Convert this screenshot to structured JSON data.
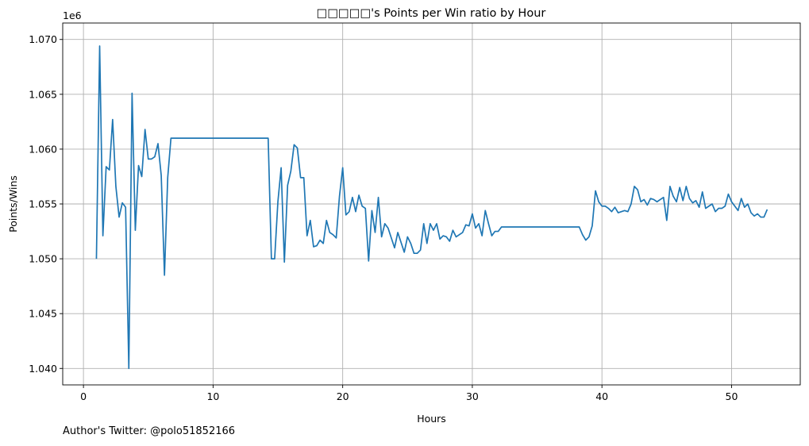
{
  "chart_data": {
    "type": "line",
    "title": "□□□□□'s Points per Win ratio by Hour",
    "xlabel": "Hours",
    "ylabel": "Points/Wins",
    "y_offset_label": "1e6",
    "xlim": [
      -1.6,
      55.3
    ],
    "ylim": [
      1.0385,
      1.0715
    ],
    "x_ticks": [
      0,
      10,
      20,
      30,
      40,
      50
    ],
    "x_tick_labels": [
      "0",
      "10",
      "20",
      "30",
      "40",
      "50"
    ],
    "y_ticks": [
      1.04,
      1.045,
      1.05,
      1.055,
      1.06,
      1.065,
      1.07
    ],
    "y_tick_labels": [
      "1.040",
      "1.045",
      "1.050",
      "1.055",
      "1.060",
      "1.065",
      "1.070"
    ],
    "grid": true,
    "line_color": "#1f77b4",
    "series": [
      {
        "x": [
          1.0,
          1.25,
          1.5,
          1.75,
          2.0,
          2.25,
          2.5,
          2.75,
          3.0,
          3.25,
          3.5,
          3.75,
          4.0,
          4.25,
          4.5,
          4.75,
          5.0,
          5.25,
          5.5,
          5.75,
          6.0,
          6.25,
          6.5,
          6.75,
          14.25,
          14.5,
          14.75,
          15.0,
          15.25,
          15.5,
          15.75,
          16.0,
          16.25,
          16.5,
          16.75,
          17.0,
          17.25,
          17.5,
          17.75,
          18.0,
          18.25,
          18.5,
          18.75,
          19.0,
          19.25,
          19.5,
          19.75,
          20.0,
          20.25,
          20.5,
          20.75,
          21.0,
          21.25,
          21.5,
          21.75,
          22.0,
          22.25,
          22.5,
          22.75,
          23.0,
          23.25,
          23.5,
          23.75,
          24.0,
          24.25,
          24.5,
          24.75,
          25.0,
          25.25,
          25.5,
          25.75,
          26.0,
          26.25,
          26.5,
          26.75,
          27.0,
          27.25,
          27.5,
          27.75,
          28.0,
          28.25,
          28.5,
          28.75,
          29.0,
          29.25,
          29.5,
          29.75,
          30.0,
          30.25,
          30.5,
          30.75,
          31.0,
          31.25,
          31.5,
          31.75,
          32.0,
          32.25,
          38.25,
          38.5,
          38.75,
          39.0,
          39.25,
          39.5,
          39.75,
          40.0,
          40.25,
          40.5,
          40.75,
          41.0,
          41.25,
          41.5,
          41.75,
          42.0,
          42.25,
          42.5,
          42.75,
          43.0,
          43.25,
          43.5,
          43.75,
          44.0,
          44.25,
          44.5,
          44.75,
          45.0,
          45.25,
          45.5,
          45.75,
          46.0,
          46.25,
          46.5,
          46.75,
          47.0,
          47.25,
          47.5,
          47.75,
          48.0,
          48.25,
          48.5,
          48.75,
          49.0,
          49.25,
          49.5,
          49.75,
          50.0,
          50.25,
          50.5,
          50.75,
          51.0,
          51.25,
          51.5,
          51.75,
          52.0,
          52.25,
          52.5,
          52.75
        ],
        "y": [
          1.05,
          1.0694,
          1.0521,
          1.0584,
          1.0581,
          1.0627,
          1.0566,
          1.0538,
          1.0551,
          1.0547,
          1.04,
          1.0651,
          1.0526,
          1.0585,
          1.0575,
          1.0618,
          1.0591,
          1.0591,
          1.0593,
          1.0605,
          1.0576,
          1.0485,
          1.0574,
          1.061,
          1.061,
          1.05,
          1.05,
          1.0552,
          1.0583,
          1.0497,
          1.0567,
          1.058,
          1.0604,
          1.0601,
          1.0574,
          1.0574,
          1.0521,
          1.0535,
          1.0511,
          1.0512,
          1.0517,
          1.0514,
          1.0535,
          1.0524,
          1.0522,
          1.0519,
          1.0557,
          1.0583,
          1.054,
          1.0543,
          1.0556,
          1.0543,
          1.0558,
          1.0548,
          1.0546,
          1.0498,
          1.0544,
          1.0524,
          1.0556,
          1.052,
          1.0532,
          1.0528,
          1.0519,
          1.051,
          1.0524,
          1.0515,
          1.0506,
          1.052,
          1.0514,
          1.0505,
          1.0505,
          1.0508,
          1.0532,
          1.0514,
          1.0532,
          1.0526,
          1.0532,
          1.0518,
          1.0521,
          1.052,
          1.0516,
          1.0526,
          1.052,
          1.0522,
          1.0524,
          1.0531,
          1.053,
          1.0541,
          1.0528,
          1.0532,
          1.0521,
          1.0544,
          1.0532,
          1.0521,
          1.0525,
          1.0525,
          1.0529,
          1.0529,
          1.0522,
          1.0517,
          1.052,
          1.053,
          1.0562,
          1.0552,
          1.0548,
          1.0548,
          1.0546,
          1.0543,
          1.0547,
          1.0542,
          1.0543,
          1.0544,
          1.0543,
          1.055,
          1.0566,
          1.0563,
          1.0552,
          1.0554,
          1.0549,
          1.0555,
          1.0554,
          1.0552,
          1.0554,
          1.0556,
          1.0535,
          1.0566,
          1.0557,
          1.0552,
          1.0565,
          1.0553,
          1.0566,
          1.0555,
          1.0551,
          1.0553,
          1.0547,
          1.0561,
          1.0546,
          1.0548,
          1.055,
          1.0543,
          1.0546,
          1.0546,
          1.0548,
          1.0559,
          1.0552,
          1.0548,
          1.0544,
          1.0555,
          1.0547,
          1.055,
          1.0542,
          1.0539,
          1.0541,
          1.0538,
          1.0538,
          1.0545
        ]
      }
    ]
  },
  "footer": {
    "credit": "Author's Twitter: @polo51852166"
  }
}
